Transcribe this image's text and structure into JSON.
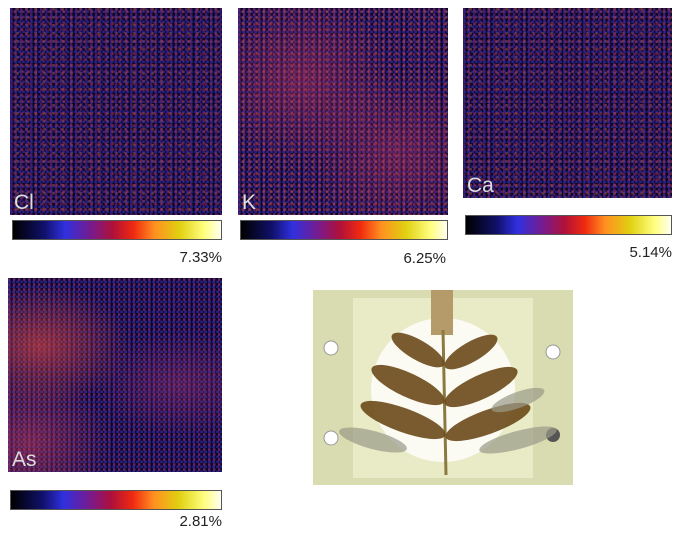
{
  "panels": [
    {
      "element": "Cl",
      "max": "7.33%"
    },
    {
      "element": "K",
      "max": "6.25%"
    },
    {
      "element": "Ca",
      "max": "5.14%"
    },
    {
      "element": "As",
      "max": "2.81%"
    }
  ]
}
